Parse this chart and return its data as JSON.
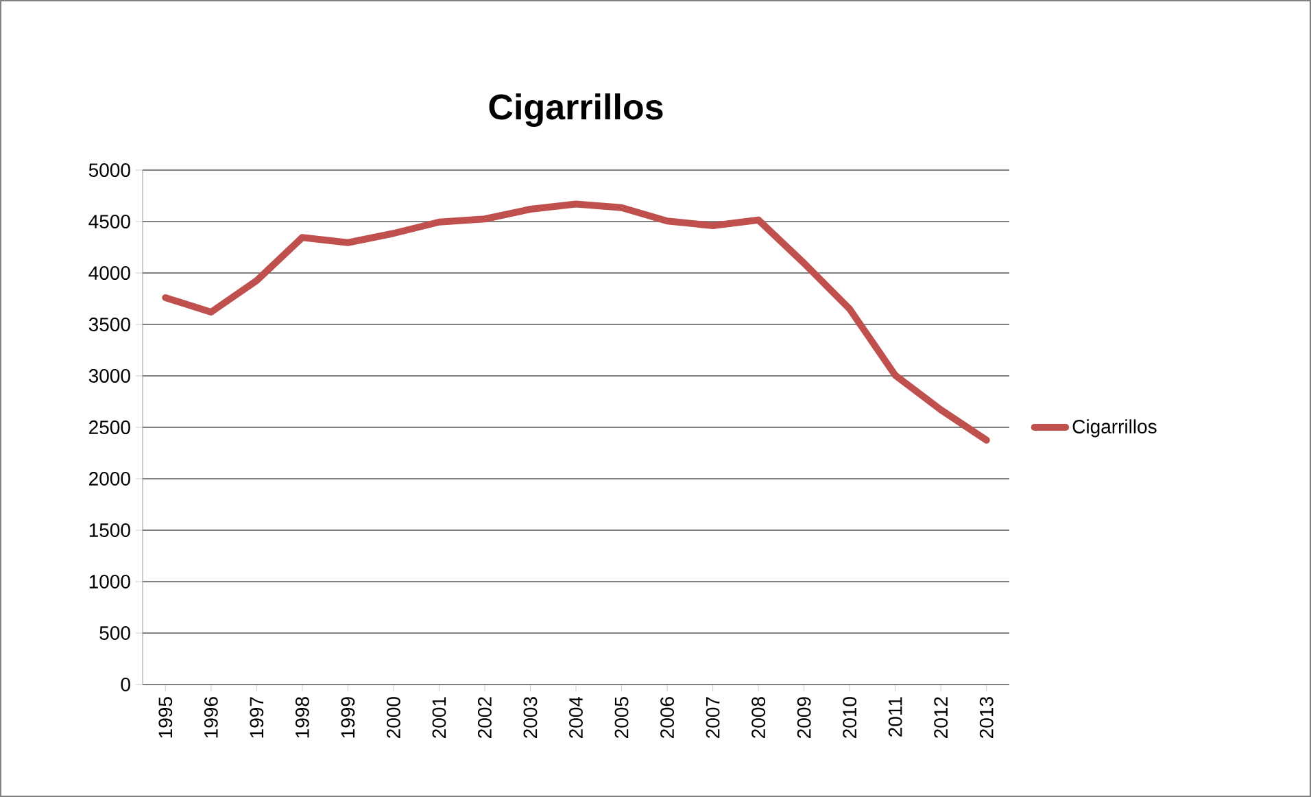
{
  "chart_data": {
    "type": "line",
    "title": "Cigarrillos",
    "categories": [
      "1995",
      "1996",
      "1997",
      "1998",
      "1999",
      "2000",
      "2001",
      "2002",
      "2003",
      "2004",
      "2005",
      "2006",
      "2007",
      "2008",
      "2009",
      "2010",
      "2011",
      "2012",
      "2013"
    ],
    "series": [
      {
        "name": "Cigarrillos",
        "color": "#c0504d",
        "values": [
          3760,
          3620,
          3925,
          4345,
          4295,
          4385,
          4495,
          4525,
          4620,
          4670,
          4635,
          4505,
          4460,
          4515,
          4095,
          3650,
          3005,
          2670,
          2375
        ]
      }
    ],
    "ylim": [
      0,
      5000
    ],
    "yticks": [
      0,
      500,
      1000,
      1500,
      2000,
      2500,
      3000,
      3500,
      4000,
      4500,
      5000
    ],
    "grid": "y",
    "legend": "right",
    "marker": "none",
    "line_style": "solid"
  }
}
